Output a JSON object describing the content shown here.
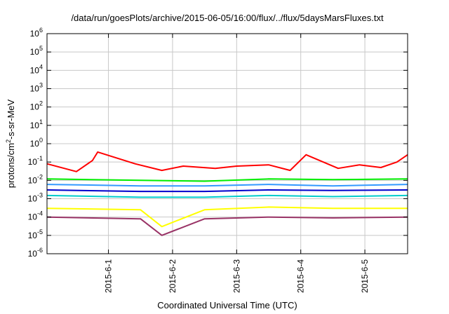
{
  "chart_data": {
    "type": "line",
    "title": "/data/run/goesPlots/archive/2015-06-05/16:00/flux/../flux/5daysMarsFluxes.txt",
    "xlabel": "Coordinated Universal Time (UTC)",
    "ylabel": "protons/cm2-s-sr-MeV",
    "ylabel_parts": {
      "before": "protons/cm",
      "sup": "2",
      "after": "-s-sr-MeV"
    },
    "y_scale": "log",
    "ylim": [
      1e-06,
      1000000.0
    ],
    "x_tick_labels": [
      "2015-6-1",
      "2015-6-2",
      "2015-6-3",
      "2015-6-4",
      "2015-6-5"
    ],
    "y_tick_labels": [
      {
        "base": "10",
        "exp": "-6"
      },
      {
        "base": "10",
        "exp": "-5"
      },
      {
        "base": "10",
        "exp": "-4"
      },
      {
        "base": "10",
        "exp": "-3"
      },
      {
        "base": "10",
        "exp": "-2"
      },
      {
        "base": "10",
        "exp": "-1"
      },
      {
        "base": "10",
        "exp": "0"
      },
      {
        "base": "10",
        "exp": "1"
      },
      {
        "base": "10",
        "exp": "2"
      },
      {
        "base": "10",
        "exp": "3"
      },
      {
        "base": "10",
        "exp": "4"
      },
      {
        "base": "10",
        "exp": "5"
      },
      {
        "base": "10",
        "exp": "6"
      }
    ],
    "x_domain_days": [
      "2015-05-31 01:00",
      "2015-06-05 16:00"
    ],
    "grid": true,
    "legend": "none",
    "series": [
      {
        "color": "#ff0000",
        "points": [
          [
            "2015-05-31 01:00",
            0.08
          ],
          [
            "2015-05-31 12:00",
            0.03
          ],
          [
            "2015-05-31 18:00",
            0.12
          ],
          [
            "2015-05-31 20:00",
            0.35
          ],
          [
            "2015-06-01 10:00",
            0.08
          ],
          [
            "2015-06-01 20:00",
            0.035
          ],
          [
            "2015-06-02 04:00",
            0.06
          ],
          [
            "2015-06-02 16:00",
            0.045
          ],
          [
            "2015-06-03 00:00",
            0.06
          ],
          [
            "2015-06-03 12:00",
            0.07
          ],
          [
            "2015-06-03 20:00",
            0.035
          ],
          [
            "2015-06-04 02:00",
            0.25
          ],
          [
            "2015-06-04 14:00",
            0.045
          ],
          [
            "2015-06-04 22:00",
            0.07
          ],
          [
            "2015-06-05 06:00",
            0.05
          ],
          [
            "2015-06-05 12:00",
            0.1
          ],
          [
            "2015-06-05 16:00",
            0.25
          ]
        ]
      },
      {
        "color": "#00ee00",
        "points": [
          [
            "2015-05-31 01:00",
            0.012
          ],
          [
            "2015-06-01 12:00",
            0.01
          ],
          [
            "2015-06-02 12:00",
            0.009
          ],
          [
            "2015-06-03 12:00",
            0.012
          ],
          [
            "2015-06-04 12:00",
            0.011
          ],
          [
            "2015-06-05 16:00",
            0.012
          ]
        ]
      },
      {
        "color": "#3399ff",
        "points": [
          [
            "2015-05-31 01:00",
            0.006
          ],
          [
            "2015-06-01 12:00",
            0.005
          ],
          [
            "2015-06-02 12:00",
            0.005
          ],
          [
            "2015-06-03 12:00",
            0.006
          ],
          [
            "2015-06-04 12:00",
            0.005
          ],
          [
            "2015-06-05 16:00",
            0.006
          ]
        ]
      },
      {
        "color": "#0000cc",
        "points": [
          [
            "2015-05-31 01:00",
            0.003
          ],
          [
            "2015-06-01 12:00",
            0.0025
          ],
          [
            "2015-06-02 12:00",
            0.0025
          ],
          [
            "2015-06-03 12:00",
            0.003
          ],
          [
            "2015-06-04 12:00",
            0.0028
          ],
          [
            "2015-06-05 16:00",
            0.003
          ]
        ]
      },
      {
        "color": "#00cccc",
        "points": [
          [
            "2015-05-31 01:00",
            0.0015
          ],
          [
            "2015-06-01 12:00",
            0.0012
          ],
          [
            "2015-06-02 12:00",
            0.0012
          ],
          [
            "2015-06-03 12:00",
            0.0015
          ],
          [
            "2015-06-04 12:00",
            0.0013
          ],
          [
            "2015-06-05 16:00",
            0.0015
          ]
        ]
      },
      {
        "color": "#ffff00",
        "points": [
          [
            "2015-05-31 01:00",
            0.0003
          ],
          [
            "2015-06-01 12:00",
            0.00025
          ],
          [
            "2015-06-01 20:00",
            3e-05
          ],
          [
            "2015-06-02 12:00",
            0.00025
          ],
          [
            "2015-06-03 12:00",
            0.00035
          ],
          [
            "2015-06-04 12:00",
            0.0003
          ],
          [
            "2015-06-05 16:00",
            0.0003
          ]
        ]
      },
      {
        "color": "#993366",
        "points": [
          [
            "2015-05-31 01:00",
            0.0001
          ],
          [
            "2015-06-01 12:00",
            8e-05
          ],
          [
            "2015-06-01 20:00",
            1e-05
          ],
          [
            "2015-06-02 12:00",
            8e-05
          ],
          [
            "2015-06-03 12:00",
            0.0001
          ],
          [
            "2015-06-04 12:00",
            9e-05
          ],
          [
            "2015-06-05 16:00",
            0.0001
          ]
        ]
      }
    ]
  }
}
